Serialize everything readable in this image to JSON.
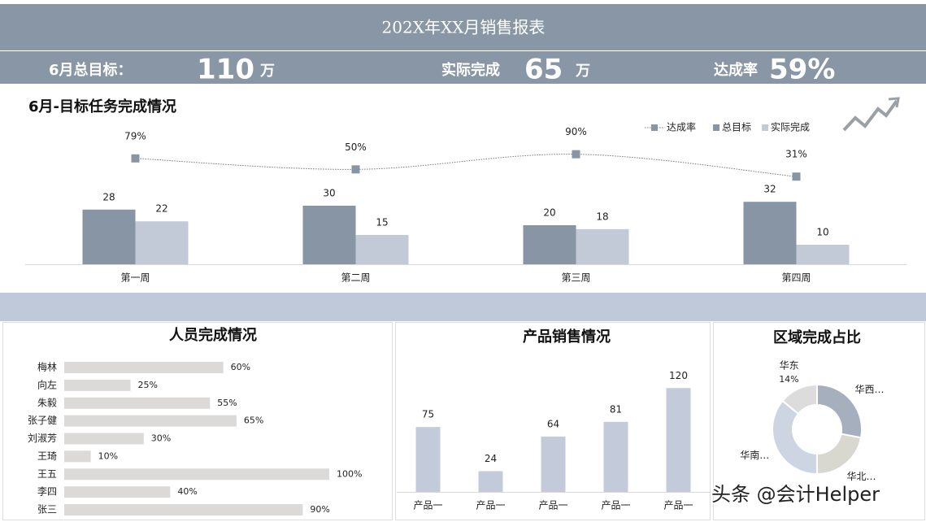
{
  "header": {
    "title": "202X年XX月销售报表"
  },
  "kpis": [
    {
      "label": "6月总目标：",
      "value": 110,
      "unit": "万"
    },
    {
      "label": "实际完成",
      "value": 65,
      "unit": "万"
    },
    {
      "label": "达成率",
      "value": 59,
      "value_label": "59%"
    }
  ],
  "chart_data": [
    {
      "type": "bar",
      "title": "6月-目标任务完成情况",
      "categories": [
        "第一周",
        "第二周",
        "第三周",
        "第四周"
      ],
      "series": [
        {
          "name": "达成率",
          "type": "line",
          "axis": "y2",
          "color": "#8795a5",
          "values": [
            79,
            50,
            90,
            31
          ],
          "value_labels": [
            "79%",
            "50%",
            "90%",
            "31%"
          ]
        },
        {
          "name": "总目标",
          "color": "#8795a5",
          "values": [
            28,
            30,
            20,
            32
          ]
        },
        {
          "name": "实际完成",
          "color": "#c2cad8",
          "values": [
            22,
            15,
            18,
            10
          ]
        }
      ],
      "ylim": [
        0,
        70
      ],
      "y2lim": [
        -200,
        160
      ],
      "legend": "top-right"
    },
    {
      "type": "hbar",
      "title": "人员完成情况",
      "categories": [
        "梅林",
        "向左",
        "朱毅",
        "张子健",
        "刘淑芳",
        "王琦",
        "王五",
        "李四",
        "张三"
      ],
      "values": [
        60,
        25,
        55,
        65,
        30,
        10,
        100,
        40,
        90
      ],
      "value_labels": [
        "60%",
        "25%",
        "55%",
        "65%",
        "30%",
        "10%",
        "100%",
        "40%",
        "90%"
      ],
      "xlim": [
        0,
        100
      ],
      "color": "#dcd9d9"
    },
    {
      "type": "bar",
      "title": "产品销售情况",
      "categories": [
        "产品一",
        "产品一",
        "产品一",
        "产品一",
        "产品一"
      ],
      "values": [
        75,
        24,
        64,
        81,
        120
      ],
      "ylim": [
        0,
        140
      ],
      "color": "#c3cbdb"
    },
    {
      "type": "donut",
      "title": "区域完成占比",
      "categories": [
        "华西…",
        "华北…",
        "华南…",
        "华东"
      ],
      "values": [
        28,
        22,
        36,
        14
      ],
      "value_labels": [
        null,
        null,
        null,
        "14%"
      ],
      "colors": [
        "#a5afbd",
        "#d9d8d0",
        "#cdd5e3",
        "#dcdcdc"
      ]
    }
  ],
  "watermark": "头条 @会计Helper"
}
